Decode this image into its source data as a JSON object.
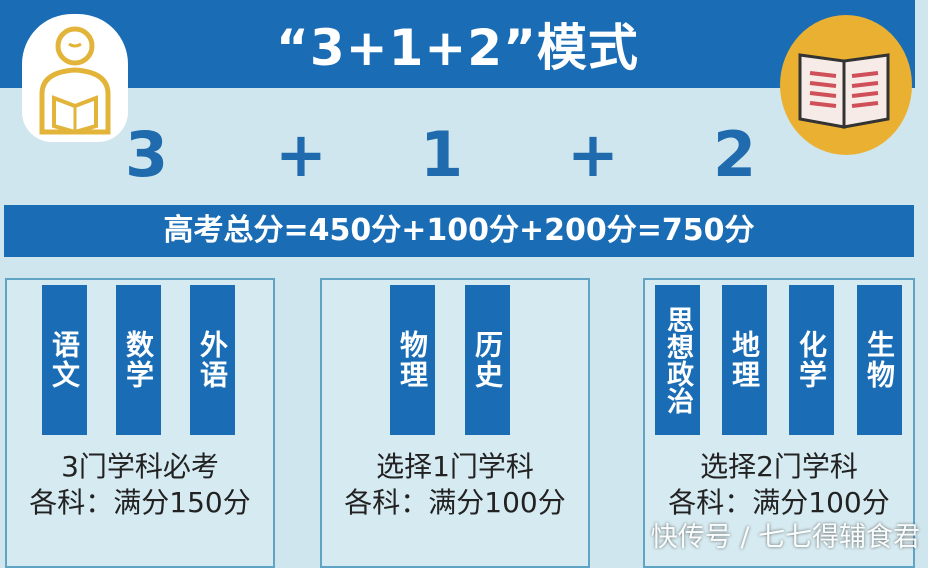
{
  "title": "“3+1+2”模式",
  "formula": {
    "a": "3",
    "plus1": "+",
    "b": "1",
    "plus2": "+",
    "c": "2"
  },
  "total": "高考总分=450分+100分+200分=750分",
  "groups": [
    {
      "subjects": [
        "语文",
        "数学",
        "外语"
      ],
      "line1": "3门学科必考",
      "line2": "各科：满分150分"
    },
    {
      "subjects": [
        "物理",
        "历史"
      ],
      "line1": "选择1门学科",
      "line2": "各科：满分100分"
    },
    {
      "subjects": [
        "思想政治",
        "地理",
        "化学",
        "生物"
      ],
      "line1": "选择2门学科",
      "line2": "各科：满分100分"
    }
  ],
  "watermark": "快传号 / 七七得辅食君",
  "colors": {
    "primary": "#1a6db5",
    "background": "#cfe6ee",
    "accent": "#eab032"
  },
  "icons": [
    "reading-person-icon",
    "open-book-icon"
  ]
}
